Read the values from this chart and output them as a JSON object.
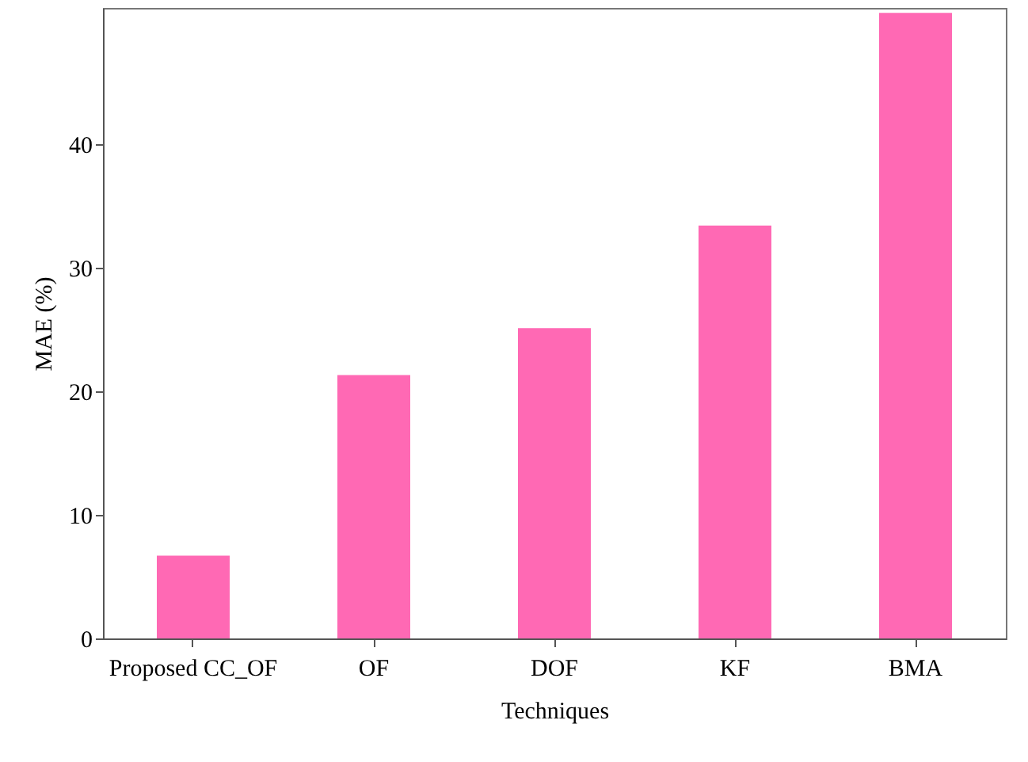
{
  "chart_data": {
    "type": "bar",
    "xlabel": "Techniques",
    "ylabel": "MAE (%)",
    "categories": [
      "Proposed CC_OF",
      "OF",
      "DOF",
      "KF",
      "BMA"
    ],
    "values": [
      6.7,
      21.3,
      25.1,
      33.4,
      50.6
    ],
    "color": "#ff69b4",
    "ylim": [
      0,
      51
    ],
    "yticks": [
      0,
      10,
      20,
      30,
      40
    ],
    "grid": false
  }
}
